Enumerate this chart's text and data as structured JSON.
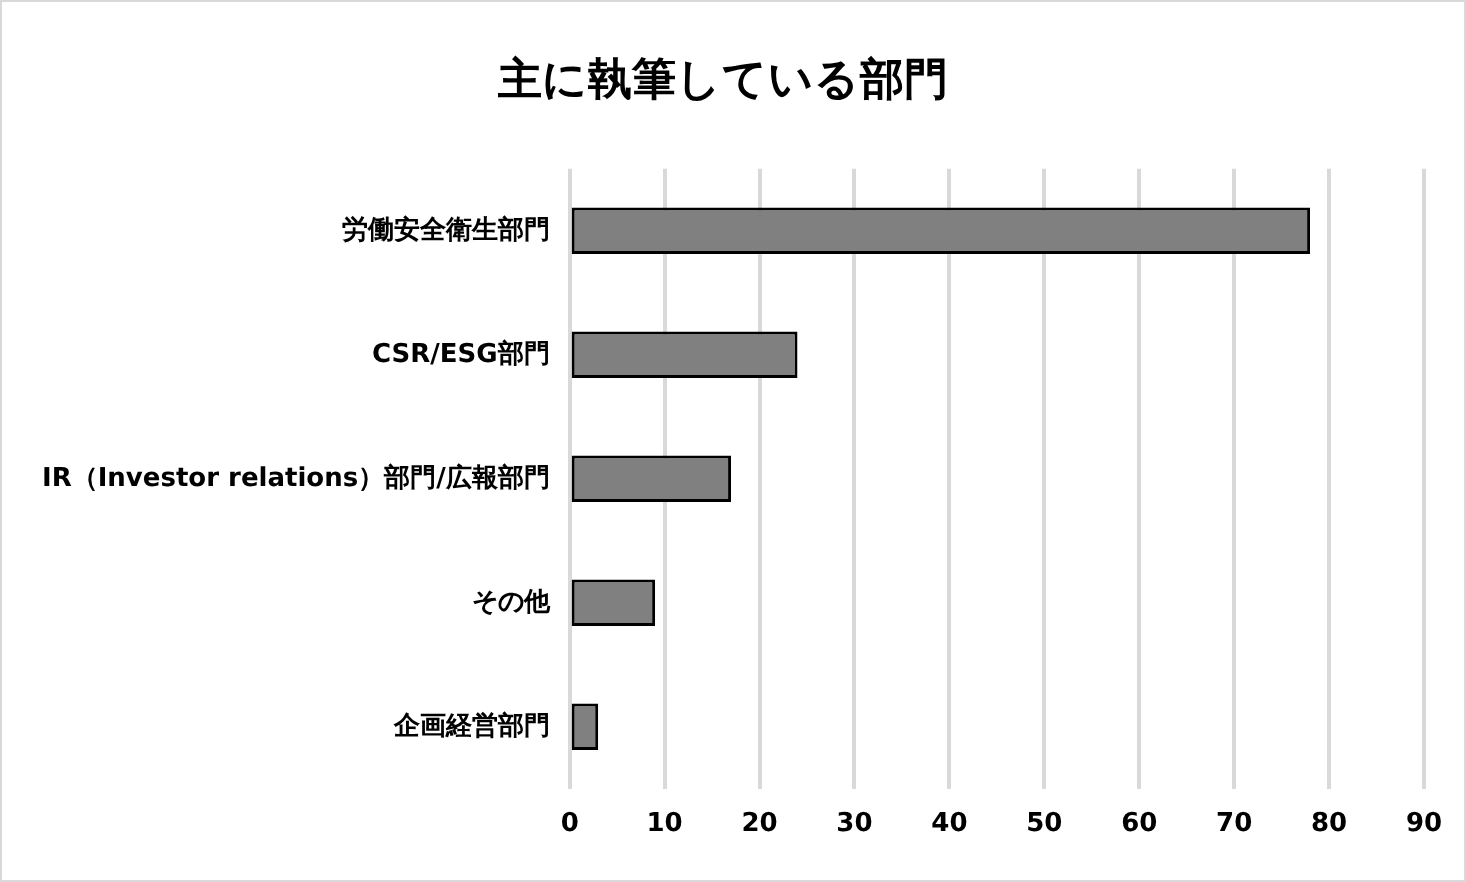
{
  "chart_data": {
    "type": "bar",
    "orientation": "horizontal",
    "title": "主に執筆している部門",
    "categories": [
      "労働安全衛生部門",
      "CSR/ESG部門",
      "IR（Investor relations）部門/広報部門",
      "その他",
      "企画経営部門"
    ],
    "values": [
      78,
      24,
      17,
      9,
      3
    ],
    "color": "#808080",
    "xlim": [
      0,
      90
    ],
    "xticks": [
      0,
      10,
      20,
      30,
      40,
      50,
      60,
      70,
      80,
      90
    ],
    "grid": "x"
  }
}
